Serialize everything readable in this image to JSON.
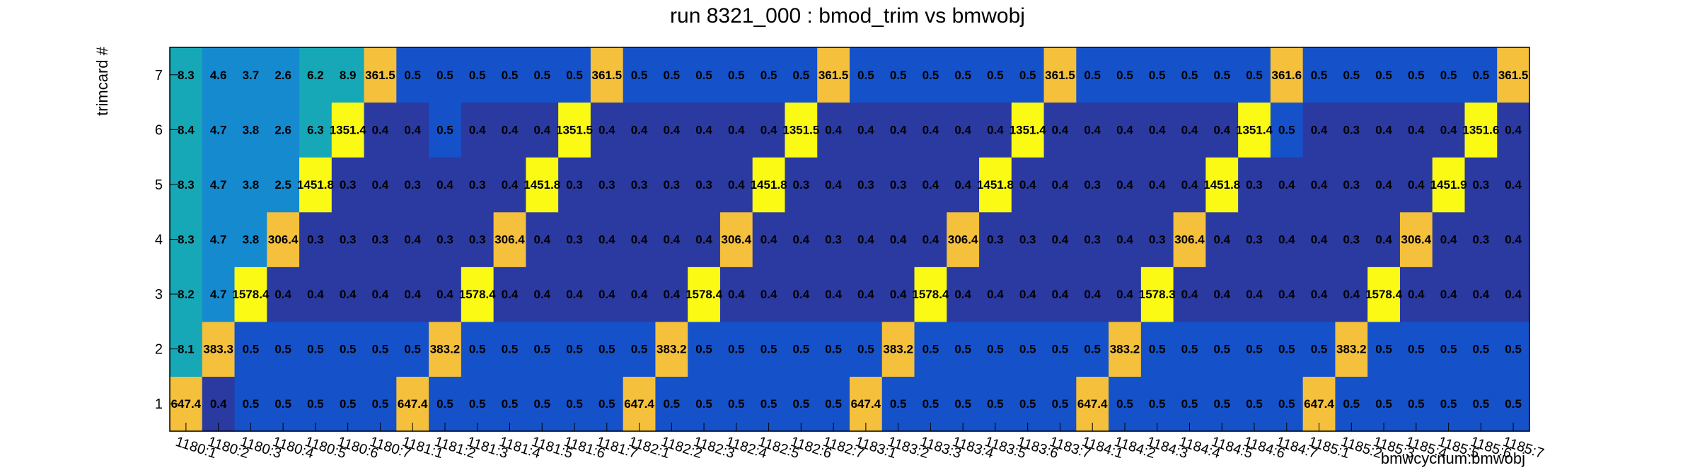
{
  "chart_data": {
    "type": "heatmap",
    "title": "run 8321_000 : bmod_trim vs bmwobj",
    "xlabel": "bmwcycnum:bmwobj",
    "ylabel": "trimcard #",
    "categories": [
      "1180:1",
      "1180:2",
      "1180:3",
      "1180:4",
      "1180:5",
      "1180:6",
      "1180:7",
      "1181:1",
      "1181:2",
      "1181:3",
      "1181:4",
      "1181:5",
      "1181:6",
      "1181:7",
      "1182:1",
      "1182:2",
      "1182:3",
      "1182:4",
      "1182:5",
      "1182:6",
      "1182:7",
      "1183:1",
      "1183:2",
      "1183:3",
      "1183:4",
      "1183:5",
      "1183:6",
      "1183:7",
      "1184:1",
      "1184:2",
      "1184:3",
      "1184:4",
      "1184:5",
      "1184:6",
      "1184:7",
      "1185:1",
      "1185:2",
      "1185:3",
      "1185:4",
      "1185:5",
      "1185:6",
      "1185:7"
    ],
    "y_categories": [
      "1",
      "2",
      "3",
      "4",
      "5",
      "6",
      "7"
    ],
    "values": [
      [
        647.4,
        0.4,
        0.5,
        0.5,
        0.5,
        0.5,
        0.5,
        647.4,
        0.5,
        0.5,
        0.5,
        0.5,
        0.5,
        0.5,
        647.4,
        0.5,
        0.5,
        0.5,
        0.5,
        0.5,
        0.5,
        647.4,
        0.5,
        0.5,
        0.5,
        0.5,
        0.5,
        0.5,
        647.4,
        0.5,
        0.5,
        0.5,
        0.5,
        0.5,
        0.5,
        647.4,
        0.5,
        0.5,
        0.5,
        0.5,
        0.5,
        0.5
      ],
      [
        8.1,
        383.3,
        0.5,
        0.5,
        0.5,
        0.5,
        0.5,
        0.5,
        383.2,
        0.5,
        0.5,
        0.5,
        0.5,
        0.5,
        0.5,
        383.2,
        0.5,
        0.5,
        0.5,
        0.5,
        0.5,
        0.5,
        383.2,
        0.5,
        0.5,
        0.5,
        0.5,
        0.5,
        0.5,
        383.2,
        0.5,
        0.5,
        0.5,
        0.5,
        0.5,
        0.5,
        383.2,
        0.5,
        0.5,
        0.5,
        0.5,
        0.5
      ],
      [
        8.2,
        4.7,
        1578.4,
        0.4,
        0.4,
        0.4,
        0.4,
        0.4,
        0.4,
        1578.4,
        0.4,
        0.4,
        0.4,
        0.4,
        0.4,
        0.4,
        1578.4,
        0.4,
        0.4,
        0.4,
        0.4,
        0.4,
        0.4,
        1578.4,
        0.4,
        0.4,
        0.4,
        0.4,
        0.4,
        0.4,
        1578.3,
        0.4,
        0.4,
        0.4,
        0.4,
        0.4,
        0.4,
        1578.4,
        0.4,
        0.4,
        0.4,
        0.4
      ],
      [
        8.3,
        4.7,
        3.8,
        306.4,
        0.3,
        0.3,
        0.3,
        0.4,
        0.3,
        0.3,
        306.4,
        0.4,
        0.3,
        0.4,
        0.4,
        0.4,
        0.4,
        306.4,
        0.4,
        0.4,
        0.3,
        0.4,
        0.4,
        0.4,
        306.4,
        0.3,
        0.3,
        0.4,
        0.3,
        0.4,
        0.3,
        306.4,
        0.4,
        0.3,
        0.4,
        0.4,
        0.3,
        0.4,
        306.4,
        0.4,
        0.3,
        0.4
      ],
      [
        8.3,
        4.7,
        3.8,
        2.5,
        1451.8,
        0.3,
        0.4,
        0.3,
        0.4,
        0.3,
        0.4,
        1451.8,
        0.3,
        0.3,
        0.3,
        0.3,
        0.3,
        0.4,
        1451.8,
        0.3,
        0.4,
        0.3,
        0.3,
        0.4,
        0.4,
        1451.8,
        0.4,
        0.4,
        0.3,
        0.4,
        0.4,
        0.4,
        1451.8,
        0.3,
        0.4,
        0.4,
        0.3,
        0.4,
        0.4,
        1451.9,
        0.3,
        0.4
      ],
      [
        8.4,
        4.7,
        3.8,
        2.6,
        6.3,
        1351.4,
        0.4,
        0.4,
        0.5,
        0.4,
        0.4,
        0.4,
        1351.5,
        0.4,
        0.4,
        0.4,
        0.4,
        0.4,
        0.4,
        1351.5,
        0.4,
        0.4,
        0.4,
        0.4,
        0.4,
        0.4,
        1351.4,
        0.4,
        0.4,
        0.4,
        0.4,
        0.4,
        0.4,
        1351.4,
        0.5,
        0.4,
        0.3,
        0.4,
        0.4,
        0.4,
        1351.6,
        0.4
      ],
      [
        8.3,
        4.6,
        3.7,
        2.6,
        6.2,
        8.9,
        361.5,
        0.5,
        0.5,
        0.5,
        0.5,
        0.5,
        0.5,
        361.5,
        0.5,
        0.5,
        0.5,
        0.5,
        0.5,
        0.5,
        361.5,
        0.5,
        0.5,
        0.5,
        0.5,
        0.5,
        0.5,
        361.5,
        0.5,
        0.5,
        0.5,
        0.5,
        0.5,
        0.5,
        361.6,
        0.5,
        0.5,
        0.5,
        0.5,
        0.5,
        0.5,
        361.5
      ]
    ],
    "colors": {
      "peak": "#fafa14",
      "high": "#f5c13c",
      "mid_teal": "#17a8b8",
      "mid_cyan": "#168acf",
      "low_blue": "#1552c9",
      "lowest_navy": "#2a3aa0",
      "frame": "#000000"
    },
    "grid": false,
    "legend": "none"
  }
}
